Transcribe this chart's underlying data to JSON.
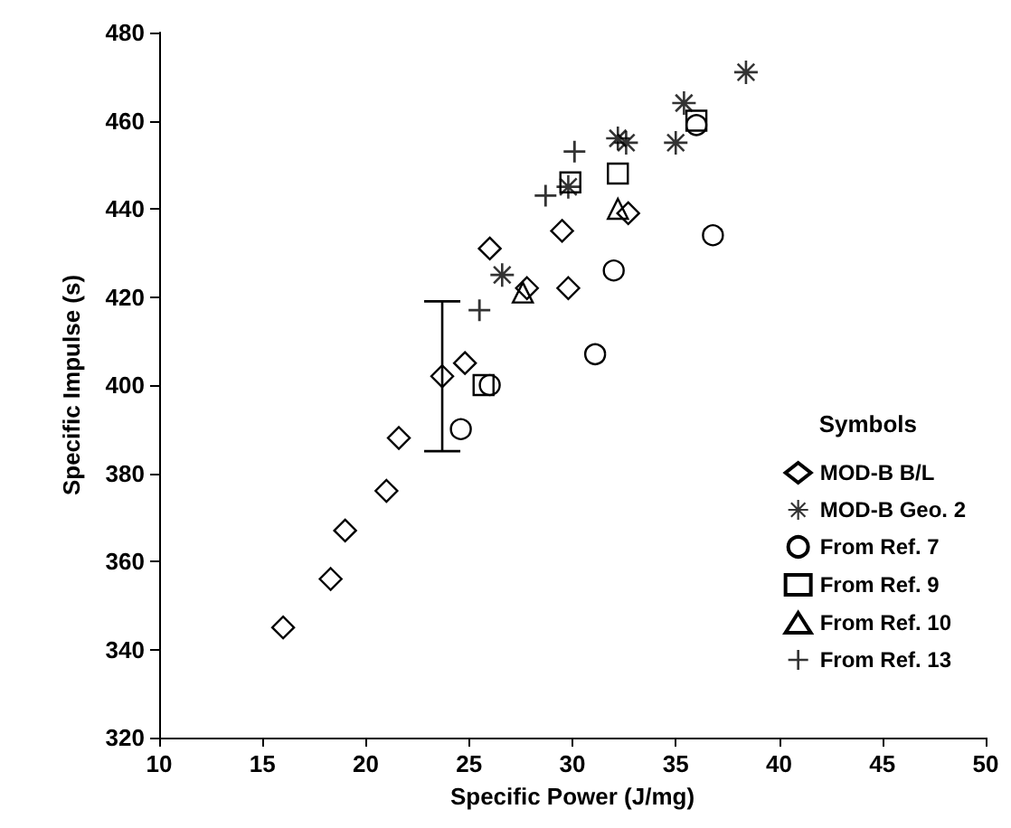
{
  "chart_data": {
    "type": "scatter",
    "xlabel": "Specific Power (J/mg)",
    "ylabel": "Specific Impulse (s)",
    "legend_title": "Symbols",
    "legend": "right",
    "grid": false,
    "xlim": [
      10,
      50
    ],
    "xticks": [
      10,
      15,
      20,
      25,
      30,
      35,
      40,
      45,
      50
    ],
    "ylim": [
      320,
      480
    ],
    "yticks": [
      320,
      340,
      360,
      380,
      400,
      420,
      440,
      460,
      480
    ],
    "series": [
      {
        "name": "MOD-B B/L",
        "color": "#000000",
        "marker": "diamond",
        "x": [
          16,
          18.3,
          19,
          21,
          21.6,
          23.7,
          24.8,
          26,
          27.8,
          29.5,
          29.8,
          32.7
        ],
        "values": [
          345,
          356,
          367,
          376,
          388,
          402,
          405,
          431,
          422,
          435,
          422,
          439
        ],
        "errors": [
          null,
          null,
          null,
          null,
          null,
          17,
          null,
          null,
          null,
          null,
          null,
          null
        ]
      },
      {
        "name": "MOD-B Geo. 2",
        "color": "#000000",
        "marker": "star",
        "x": [
          26.6,
          29.8,
          32.2,
          32.6,
          35,
          35.4,
          38.4
        ],
        "values": [
          425,
          445,
          456,
          455,
          455,
          464,
          471
        ]
      },
      {
        "name": "From Ref. 7",
        "color": "#000000",
        "marker": "circle",
        "x": [
          24.6,
          26,
          31.1,
          32,
          36,
          36.8
        ],
        "values": [
          390,
          400,
          407,
          426,
          459,
          434
        ]
      },
      {
        "name": "From Ref. 9",
        "color": "#000000",
        "marker": "square",
        "x": [
          25.7,
          29.9,
          32.2,
          36
        ],
        "values": [
          400,
          446,
          448,
          460
        ]
      },
      {
        "name": "From Ref. 10",
        "color": "#000000",
        "marker": "triangle",
        "x": [
          27.6,
          32.2
        ],
        "values": [
          421,
          440
        ]
      },
      {
        "name": "From Ref. 13",
        "color": "#000000",
        "marker": "cross",
        "x": [
          25.5,
          28.7,
          30.1
        ],
        "values": [
          417,
          443,
          453
        ]
      }
    ]
  }
}
